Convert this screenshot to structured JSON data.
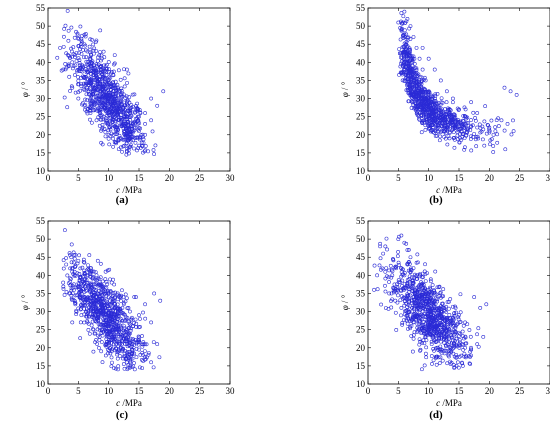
{
  "chart_data": [
    {
      "type": "scatter",
      "panel": "(a)",
      "xlabel": "c",
      "xunit": "/MPa",
      "ylabel": "φ",
      "yunit": "/ °",
      "xlim": [
        0,
        30
      ],
      "ylim": [
        10,
        55
      ],
      "xticks": [
        0,
        5,
        10,
        15,
        20,
        25,
        30
      ],
      "yticks": [
        10,
        15,
        20,
        25,
        30,
        35,
        40,
        45,
        50,
        55
      ],
      "marker": "circle-open",
      "color": "#2b2bd6",
      "description": "Approximately 1000 points: c mostly 3–19 MPa, φ mostly 15–47 °, negative correlation",
      "points": [
        [
          2.0,
          44.0
        ],
        [
          3.0,
          42.5
        ],
        [
          4.0,
          40.0
        ],
        [
          5.0,
          44.5
        ],
        [
          5.5,
          46.5
        ],
        [
          6.0,
          45.0
        ],
        [
          6.5,
          43.0
        ],
        [
          7.0,
          41.0
        ],
        [
          7.5,
          38.5
        ],
        [
          8.0,
          36.0
        ],
        [
          8.5,
          34.0
        ],
        [
          9.0,
          32.0
        ],
        [
          9.5,
          30.0
        ],
        [
          10.0,
          28.0
        ],
        [
          10.5,
          26.5
        ],
        [
          11.0,
          25.0
        ],
        [
          11.5,
          24.0
        ],
        [
          12.0,
          22.5
        ],
        [
          12.5,
          21.0
        ],
        [
          13.0,
          20.0
        ],
        [
          14.0,
          18.5
        ],
        [
          15.0,
          17.0
        ],
        [
          16.0,
          20.0
        ],
        [
          17.0,
          24.0
        ],
        [
          18.0,
          28.0
        ],
        [
          19.0,
          32.0
        ],
        [
          4.0,
          33.0
        ],
        [
          5.0,
          30.0
        ],
        [
          6.0,
          28.0
        ],
        [
          7.0,
          26.0
        ],
        [
          8.0,
          24.0
        ],
        [
          9.0,
          22.0
        ],
        [
          10.0,
          20.0
        ],
        [
          11.0,
          18.0
        ],
        [
          12.0,
          16.5
        ],
        [
          13.0,
          15.5
        ],
        [
          9.0,
          38.0
        ],
        [
          10.0,
          35.0
        ],
        [
          11.0,
          33.0
        ],
        [
          12.0,
          31.0
        ],
        [
          13.0,
          29.0
        ],
        [
          14.0,
          27.0
        ],
        [
          15.0,
          25.0
        ],
        [
          16.0,
          23.0
        ],
        [
          11.0,
          42.0
        ],
        [
          13.0,
          38.0
        ],
        [
          3.5,
          36.0
        ],
        [
          2.5,
          38.0
        ],
        [
          6.0,
          36.0
        ],
        [
          7.0,
          33.0
        ],
        [
          8.0,
          30.0
        ],
        [
          9.0,
          27.0
        ],
        [
          10.0,
          31.0
        ],
        [
          11.0,
          29.0
        ],
        [
          12.0,
          27.0
        ],
        [
          13.0,
          25.0
        ],
        [
          14.0,
          23.0
        ],
        [
          15.0,
          21.0
        ],
        [
          16.0,
          26.0
        ],
        [
          17.0,
          30.0
        ]
      ]
    },
    {
      "type": "scatter",
      "panel": "(b)",
      "xlabel": "c",
      "xunit": "/MPa",
      "ylabel": "φ",
      "yunit": "/ °",
      "xlim": [
        0,
        30
      ],
      "ylim": [
        10,
        55
      ],
      "xticks": [
        0,
        5,
        10,
        15,
        20,
        25,
        30
      ],
      "yticks": [
        10,
        15,
        20,
        25,
        30,
        35,
        40,
        45,
        50,
        55
      ],
      "marker": "circle-open",
      "color": "#2b2bd6",
      "description": "Approximately 1000 points: c mostly 5–24 MPa, φ mostly 20–55 °, decaying trend",
      "points": [
        [
          5.0,
          51.0
        ],
        [
          5.5,
          49.0
        ],
        [
          6.0,
          54.0
        ],
        [
          6.5,
          52.0
        ],
        [
          7.0,
          50.0
        ],
        [
          7.5,
          47.0
        ],
        [
          8.0,
          44.0
        ],
        [
          8.5,
          41.0
        ],
        [
          9.0,
          38.0
        ],
        [
          9.5,
          35.0
        ],
        [
          10.0,
          32.0
        ],
        [
          10.5,
          30.0
        ],
        [
          11.0,
          28.5
        ],
        [
          11.5,
          27.0
        ],
        [
          12.0,
          26.0
        ],
        [
          13.0,
          25.0
        ],
        [
          14.0,
          24.0
        ],
        [
          15.0,
          23.5
        ],
        [
          16.0,
          23.0
        ],
        [
          17.0,
          22.5
        ],
        [
          18.0,
          22.0
        ],
        [
          19.0,
          21.5
        ],
        [
          20.0,
          22.0
        ],
        [
          21.0,
          21.0
        ],
        [
          22.0,
          24.0
        ],
        [
          23.0,
          23.0
        ],
        [
          24.0,
          21.0
        ],
        [
          24.5,
          31.0
        ],
        [
          23.5,
          32.0
        ],
        [
          22.5,
          33.0
        ],
        [
          6.0,
          40.0
        ],
        [
          7.0,
          38.0
        ],
        [
          8.0,
          35.0
        ],
        [
          9.0,
          32.0
        ],
        [
          10.0,
          29.0
        ],
        [
          11.0,
          27.0
        ],
        [
          12.0,
          25.0
        ],
        [
          13.0,
          23.5
        ],
        [
          14.0,
          22.0
        ],
        [
          5.5,
          37.0
        ],
        [
          6.5,
          34.0
        ],
        [
          7.5,
          31.0
        ],
        [
          8.5,
          28.0
        ],
        [
          9.5,
          26.0
        ],
        [
          10.5,
          24.0
        ],
        [
          11.5,
          22.5
        ],
        [
          12.5,
          21.0
        ],
        [
          15.0,
          27.0
        ],
        [
          16.0,
          25.0
        ],
        [
          17.0,
          29.0
        ],
        [
          18.0,
          26.0
        ],
        [
          9.0,
          44.0
        ],
        [
          10.0,
          41.0
        ],
        [
          11.0,
          38.0
        ],
        [
          12.0,
          35.0
        ],
        [
          13.0,
          32.0
        ],
        [
          14.0,
          30.0
        ]
      ]
    },
    {
      "type": "scatter",
      "panel": "(c)",
      "xlabel": "c",
      "xunit": "/MPa",
      "ylabel": "φ",
      "yunit": "/ °",
      "xlim": [
        0,
        30
      ],
      "ylim": [
        10,
        55
      ],
      "xticks": [
        0,
        5,
        10,
        15,
        20,
        25,
        30
      ],
      "yticks": [
        10,
        15,
        20,
        25,
        30,
        35,
        40,
        45,
        50,
        55
      ],
      "marker": "circle-open",
      "color": "#2b2bd6",
      "description": "Approximately 1000 points: c mostly 3–18 MPa, φ mostly 15–44 °, negative correlation",
      "points": [
        [
          3.0,
          43.0
        ],
        [
          4.0,
          41.0
        ],
        [
          5.0,
          44.0
        ],
        [
          6.0,
          43.5
        ],
        [
          7.0,
          42.0
        ],
        [
          8.0,
          40.0
        ],
        [
          9.0,
          37.0
        ],
        [
          10.0,
          34.0
        ],
        [
          11.0,
          31.0
        ],
        [
          12.0,
          28.0
        ],
        [
          13.0,
          25.0
        ],
        [
          14.0,
          22.0
        ],
        [
          15.0,
          19.5
        ],
        [
          16.0,
          17.5
        ],
        [
          17.0,
          16.0
        ],
        [
          18.0,
          21.0
        ],
        [
          18.5,
          33.0
        ],
        [
          17.5,
          35.0
        ],
        [
          3.5,
          35.0
        ],
        [
          4.5,
          32.0
        ],
        [
          5.5,
          29.0
        ],
        [
          6.5,
          27.0
        ],
        [
          7.5,
          25.0
        ],
        [
          8.5,
          23.0
        ],
        [
          9.5,
          21.0
        ],
        [
          10.5,
          19.0
        ],
        [
          11.5,
          17.0
        ],
        [
          12.5,
          15.5
        ],
        [
          13.5,
          14.5
        ],
        [
          6.0,
          38.0
        ],
        [
          7.0,
          36.0
        ],
        [
          8.0,
          33.0
        ],
        [
          9.0,
          30.0
        ],
        [
          10.0,
          27.0
        ],
        [
          11.0,
          25.0
        ],
        [
          12.0,
          23.0
        ],
        [
          13.0,
          21.0
        ],
        [
          14.0,
          26.0
        ],
        [
          15.0,
          29.0
        ],
        [
          16.0,
          32.0
        ],
        [
          17.0,
          27.0
        ],
        [
          5.0,
          37.0
        ],
        [
          4.0,
          27.0
        ],
        [
          2.5,
          38.0
        ],
        [
          9.5,
          41.0
        ],
        [
          10.5,
          38.0
        ],
        [
          11.5,
          35.0
        ],
        [
          12.5,
          32.0
        ],
        [
          13.5,
          30.0
        ],
        [
          14.5,
          34.0
        ]
      ]
    },
    {
      "type": "scatter",
      "panel": "(d)",
      "xlabel": "c",
      "xunit": "/MPa",
      "ylabel": "φ",
      "yunit": "/ °",
      "xlim": [
        0,
        30
      ],
      "ylim": [
        10,
        55
      ],
      "xticks": [
        0,
        5,
        10,
        15,
        20,
        25,
        30
      ],
      "yticks": [
        10,
        15,
        20,
        25,
        30,
        35,
        40,
        45,
        50,
        55
      ],
      "marker": "circle-open",
      "color": "#2b2bd6",
      "description": "Approximately 1000 points: c mostly 2–20 MPa, φ mostly 18–51 °, negative correlation",
      "points": [
        [
          2.0,
          48.0
        ],
        [
          2.5,
          46.0
        ],
        [
          3.0,
          42.0
        ],
        [
          4.0,
          40.0
        ],
        [
          5.0,
          50.0
        ],
        [
          5.5,
          51.0
        ],
        [
          6.0,
          49.0
        ],
        [
          6.5,
          47.0
        ],
        [
          7.0,
          45.0
        ],
        [
          7.5,
          42.0
        ],
        [
          8.0,
          39.0
        ],
        [
          8.5,
          36.0
        ],
        [
          9.0,
          34.0
        ],
        [
          9.5,
          32.0
        ],
        [
          10.0,
          30.0
        ],
        [
          10.5,
          28.5
        ],
        [
          11.0,
          27.0
        ],
        [
          11.5,
          26.0
        ],
        [
          12.0,
          25.0
        ],
        [
          13.0,
          23.5
        ],
        [
          14.0,
          22.0
        ],
        [
          15.0,
          21.0
        ],
        [
          16.0,
          20.0
        ],
        [
          17.0,
          19.5
        ],
        [
          18.0,
          21.0
        ],
        [
          19.0,
          23.0
        ],
        [
          19.5,
          32.0
        ],
        [
          18.5,
          31.0
        ],
        [
          17.5,
          34.0
        ],
        [
          3.5,
          35.0
        ],
        [
          4.5,
          33.0
        ],
        [
          5.5,
          31.0
        ],
        [
          6.5,
          29.0
        ],
        [
          7.5,
          27.0
        ],
        [
          8.5,
          25.0
        ],
        [
          9.5,
          23.0
        ],
        [
          10.5,
          21.0
        ],
        [
          11.5,
          20.0
        ],
        [
          12.5,
          19.0
        ],
        [
          6.0,
          40.0
        ],
        [
          7.0,
          37.0
        ],
        [
          8.0,
          34.0
        ],
        [
          9.0,
          31.0
        ],
        [
          10.0,
          28.0
        ],
        [
          11.0,
          26.0
        ],
        [
          12.0,
          30.0
        ],
        [
          13.0,
          28.0
        ],
        [
          14.0,
          26.0
        ],
        [
          15.0,
          29.0
        ],
        [
          16.0,
          27.0
        ],
        [
          10.0,
          36.0
        ],
        [
          11.0,
          33.0
        ],
        [
          1.5,
          40.0
        ],
        [
          1.0,
          36.0
        ]
      ]
    }
  ]
}
